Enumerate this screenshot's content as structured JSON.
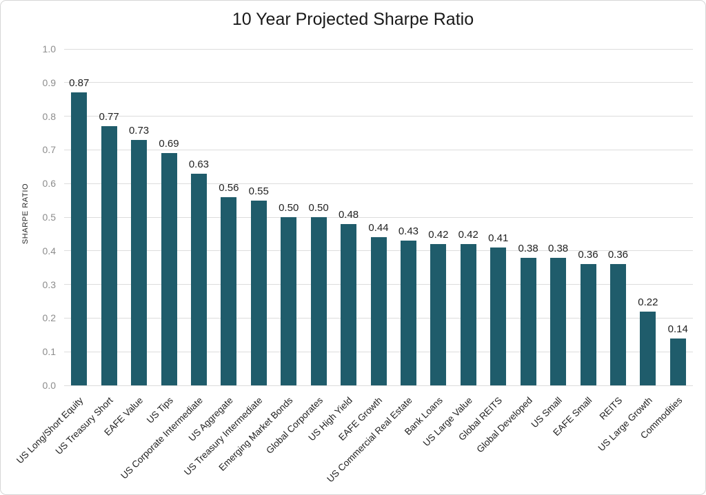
{
  "chart": {
    "title": "10 Year Projected Sharpe Ratio",
    "y_axis_title": "SHARPE RATIO"
  },
  "chart_data": {
    "type": "bar",
    "title": "10 Year Projected Sharpe Ratio",
    "xlabel": "",
    "ylabel": "SHARPE RATIO",
    "ylim": [
      0.0,
      1.0
    ],
    "ytick_step": 0.1,
    "ytick_labels": [
      "0.0",
      "0.1",
      "0.2",
      "0.3",
      "0.4",
      "0.5",
      "0.6",
      "0.7",
      "0.8",
      "0.9",
      "1.0"
    ],
    "grid": true,
    "legend": false,
    "bar_color": "#1f5c6b",
    "gridline_color": "#dcdcdc",
    "tick_label_color": "#8c8c8c",
    "text_color": "#1f1f1f",
    "categories": [
      "US Long/Short Equity",
      "US Treasury Short",
      "EAFE Value",
      "US Tips",
      "US Corporate Intermediate",
      "US Aggregate",
      "US Treasury Intermediate",
      "Emerging Market Bonds",
      "Global Corporates",
      "US High Yield",
      "EAFE Growth",
      "US Commercial Real Estate",
      "Bank Loans",
      "US Large Value",
      "Global REITS",
      "Global Developed",
      "US Small",
      "EAFE Small",
      "REITS",
      "US Large Growth",
      "Commodities"
    ],
    "values": [
      0.87,
      0.77,
      0.73,
      0.69,
      0.63,
      0.56,
      0.55,
      0.5,
      0.5,
      0.48,
      0.44,
      0.43,
      0.42,
      0.42,
      0.41,
      0.38,
      0.38,
      0.36,
      0.36,
      0.22,
      0.14
    ],
    "data_labels": [
      "0.87",
      "0.77",
      "0.73",
      "0.69",
      "0.63",
      "0.56",
      "0.55",
      "0.50",
      "0.50",
      "0.48",
      "0.44",
      "0.43",
      "0.42",
      "0.42",
      "0.41",
      "0.38",
      "0.38",
      "0.36",
      "0.36",
      "0.22",
      "0.14"
    ]
  }
}
